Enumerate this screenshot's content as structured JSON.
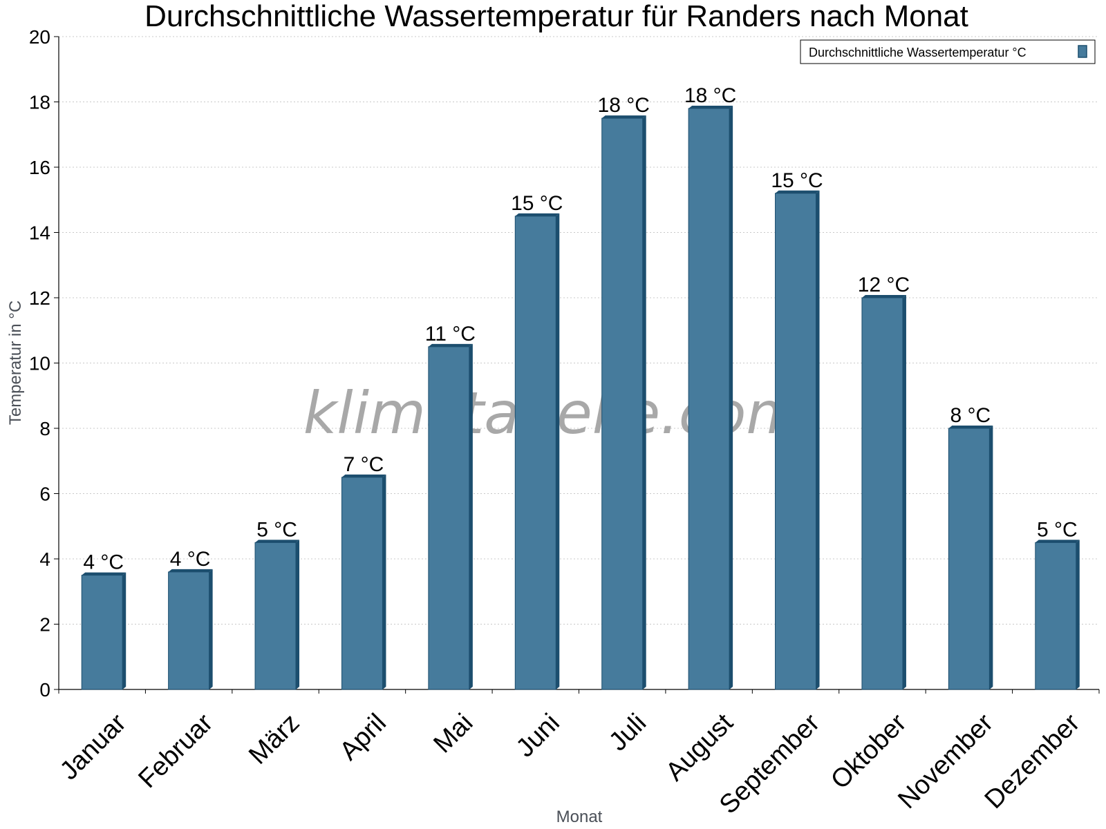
{
  "chart_data": {
    "type": "bar",
    "title": "Durchschnittliche Wassertemperatur für Randers nach Monat",
    "xlabel": "Monat",
    "ylabel": "Temperatur in °C",
    "ylim": [
      0,
      20
    ],
    "yticks": [
      0,
      2,
      4,
      6,
      8,
      10,
      12,
      14,
      16,
      18,
      20
    ],
    "grid": true,
    "legend_position": "top-right",
    "categories": [
      "Januar",
      "Februar",
      "März",
      "April",
      "Mai",
      "Juni",
      "Juli",
      "August",
      "September",
      "Oktober",
      "November",
      "Dezember"
    ],
    "series": [
      {
        "name": "Durchschnittliche Wassertemperatur °C",
        "values": [
          3.5,
          3.6,
          4.5,
          6.5,
          10.5,
          14.5,
          17.5,
          17.8,
          15.2,
          12.0,
          8.0,
          4.5
        ],
        "data_labels": [
          "4 °C",
          "4 °C",
          "5 °C",
          "7 °C",
          "11 °C",
          "15 °C",
          "18 °C",
          "18 °C",
          "15 °C",
          "12 °C",
          "8 °C",
          "5 °C"
        ]
      }
    ],
    "colors": {
      "bar": "#467b9c",
      "bar_side": "#1c4e6e",
      "grid": "#c8c8c8"
    },
    "watermark": "klimatabelle.com"
  }
}
